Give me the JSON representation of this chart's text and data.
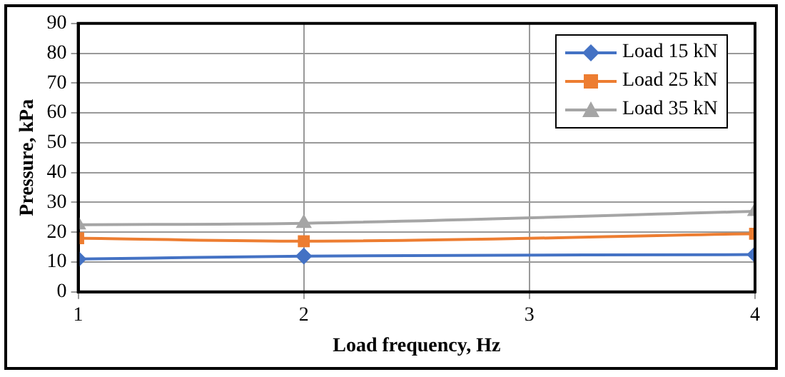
{
  "chart_data": {
    "type": "line",
    "xlabel": "Load frequency, Hz",
    "ylabel": "Pressure, kPa",
    "x": [
      1,
      2,
      4
    ],
    "xlim": [
      1,
      4
    ],
    "xticks": [
      1,
      2,
      3,
      4
    ],
    "ylim": [
      0,
      90
    ],
    "yticks": [
      0,
      10,
      20,
      30,
      40,
      50,
      60,
      70,
      80,
      90
    ],
    "grid": true,
    "legend": "top right",
    "series": [
      {
        "name": "Load 15 kN",
        "color": "#4472c4",
        "marker": "diamond",
        "values": [
          11,
          12,
          12.5
        ]
      },
      {
        "name": "Load 25 kN",
        "color": "#ed7d31",
        "marker": "square",
        "values": [
          18,
          17,
          19.5
        ]
      },
      {
        "name": "Load 35 kN",
        "color": "#a5a5a5",
        "marker": "triangle",
        "values": [
          22.5,
          23,
          27
        ]
      }
    ]
  }
}
